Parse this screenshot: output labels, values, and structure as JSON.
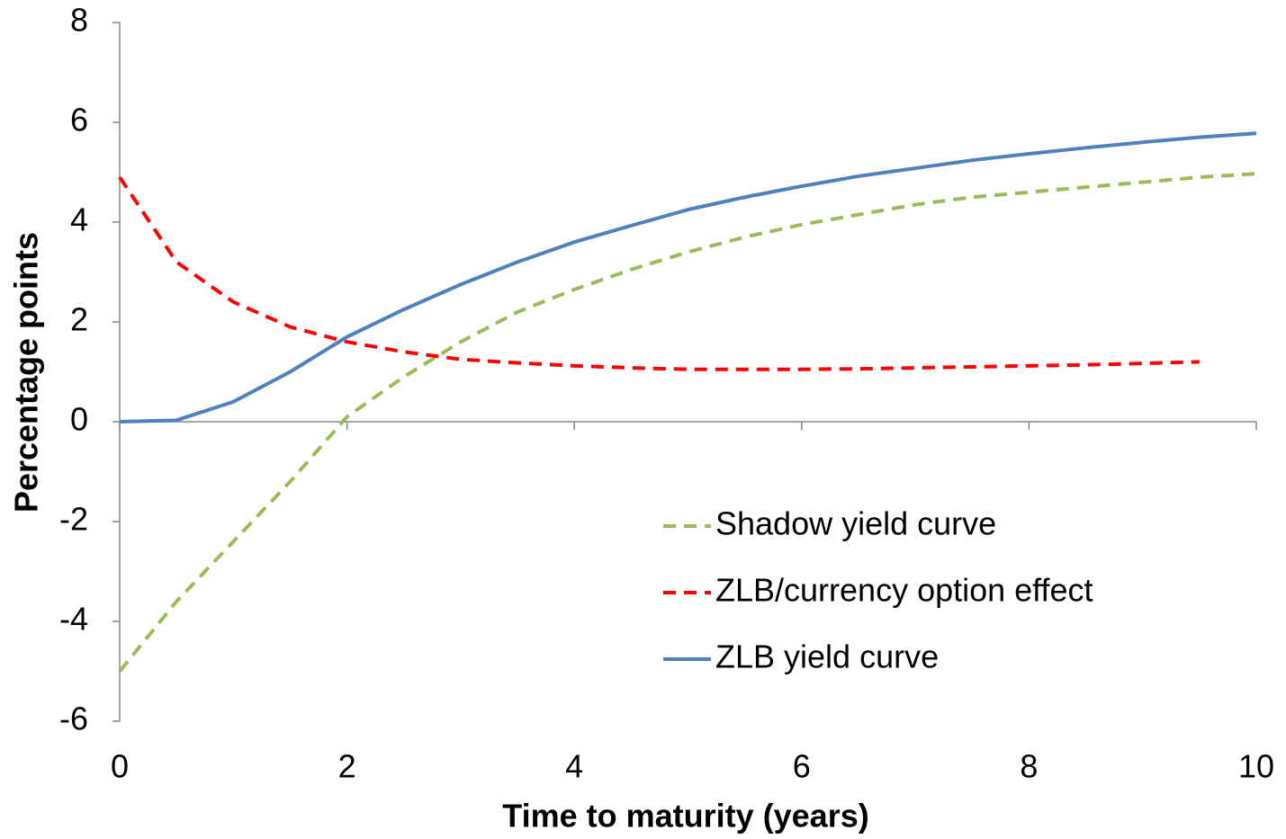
{
  "chart_data": {
    "type": "line",
    "xlabel": "Time to maturity (years)",
    "ylabel": "Percentage points",
    "x": [
      0,
      0.5,
      1,
      1.5,
      2,
      2.5,
      3,
      3.5,
      4,
      4.5,
      5,
      5.5,
      6,
      6.5,
      7,
      7.5,
      8,
      8.5,
      9,
      9.5,
      10
    ],
    "series": [
      {
        "name": "Shadow yield curve",
        "color": "#9bbb59",
        "dash": "dashed",
        "values": [
          -5,
          -3.6,
          -2.4,
          -1.2,
          0.1,
          0.9,
          1.6,
          2.2,
          2.65,
          3.05,
          3.4,
          3.7,
          3.95,
          4.15,
          4.35,
          4.5,
          4.6,
          4.7,
          4.8,
          4.9,
          4.97
        ]
      },
      {
        "name": "ZLB/currency option effect",
        "color": "#ff0000",
        "dash": "dashed",
        "values": [
          4.9,
          3.2,
          2.4,
          1.9,
          1.6,
          1.4,
          1.25,
          1.18,
          1.12,
          1.08,
          1.05,
          1.05,
          1.05,
          1.06,
          1.08,
          1.1,
          1.12,
          1.14,
          1.17,
          1.2,
          null
        ]
      },
      {
        "name": "ZLB yield curve",
        "color": "#4f81bd",
        "dash": "solid",
        "values": [
          0,
          0.03,
          0.4,
          1.0,
          1.7,
          2.25,
          2.75,
          3.2,
          3.6,
          3.93,
          4.25,
          4.5,
          4.72,
          4.92,
          5.08,
          5.24,
          5.37,
          5.49,
          5.6,
          5.7,
          5.78
        ]
      }
    ],
    "xlim": [
      0,
      10
    ],
    "xticks": [
      0,
      2,
      4,
      6,
      8,
      10
    ],
    "ylim": [
      -6,
      8
    ],
    "yticks": [
      -6,
      -4,
      -2,
      0,
      2,
      4,
      6,
      8
    ],
    "grid": false,
    "legend": "lower right"
  }
}
